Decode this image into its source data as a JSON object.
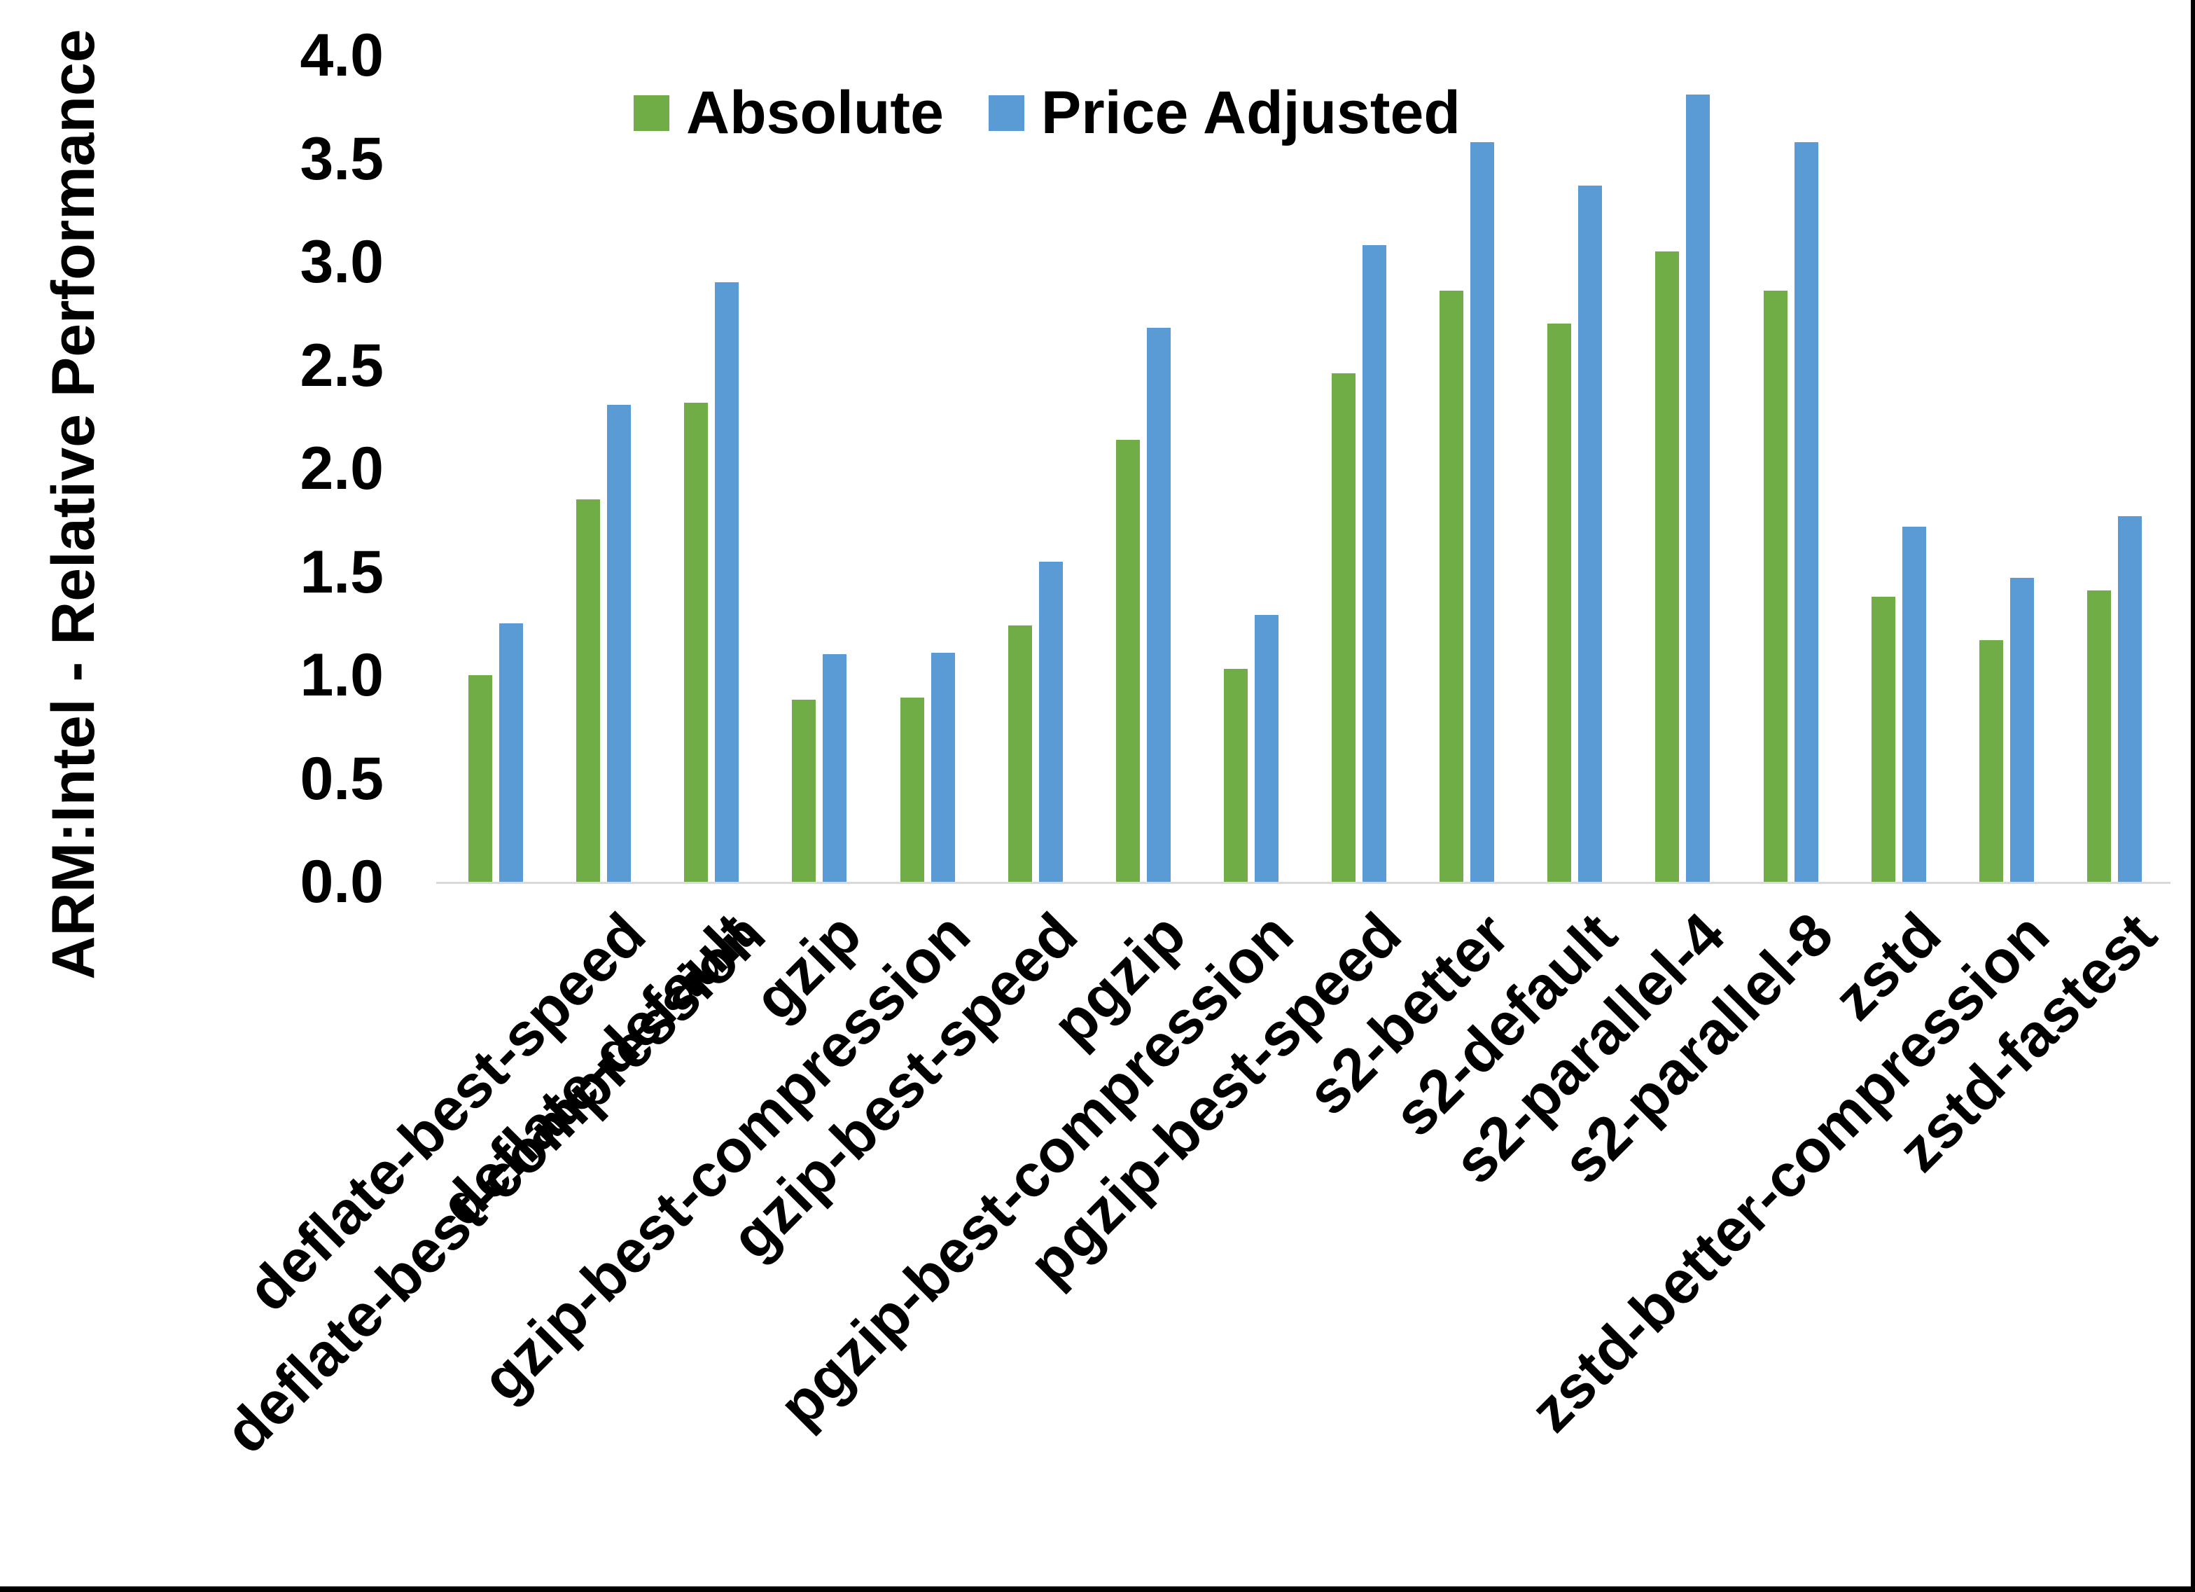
{
  "colors": {
    "background": "#FFFFFF",
    "axis_line": "#D9D9D9",
    "text": "#000000",
    "frame_border": "#000000"
  },
  "chart_data": {
    "type": "bar",
    "title": "",
    "xlabel": "",
    "ylabel": "ARM:Intel - Relative Performance",
    "ylim": [
      0.0,
      4.0
    ],
    "ytick_step": 0.5,
    "ytick_labels": [
      "0.0",
      "0.5",
      "1.0",
      "1.5",
      "2.0",
      "2.5",
      "3.0",
      "3.5",
      "4.0"
    ],
    "grid": false,
    "legend_position": "top-center",
    "bar_orientation": "vertical",
    "categories": [
      "deflate-best-compression",
      "deflate-best-speed",
      "deflate-default",
      "gzip",
      "gzip-best-compression",
      "gzip-best-speed",
      "pgzip",
      "pgzip-best-compression",
      "pgzip-best-speed",
      "s2-better",
      "s2-default",
      "s2-parallel-4",
      "s2-parallel-8",
      "zstd",
      "zstd-better-compression",
      "zstd-fastest"
    ],
    "series": [
      {
        "name": "Absolute",
        "color": "#70AD47",
        "values": [
          1.0,
          1.85,
          2.32,
          0.88,
          0.89,
          1.24,
          2.14,
          1.03,
          2.46,
          2.86,
          2.7,
          3.05,
          2.86,
          1.38,
          1.17,
          1.41
        ]
      },
      {
        "name": "Price Adjusted",
        "color": "#5B9BD5",
        "values": [
          1.25,
          2.31,
          2.9,
          1.1,
          1.11,
          1.55,
          2.68,
          1.29,
          3.08,
          3.58,
          3.37,
          3.81,
          3.58,
          1.72,
          1.47,
          1.77
        ]
      }
    ]
  }
}
